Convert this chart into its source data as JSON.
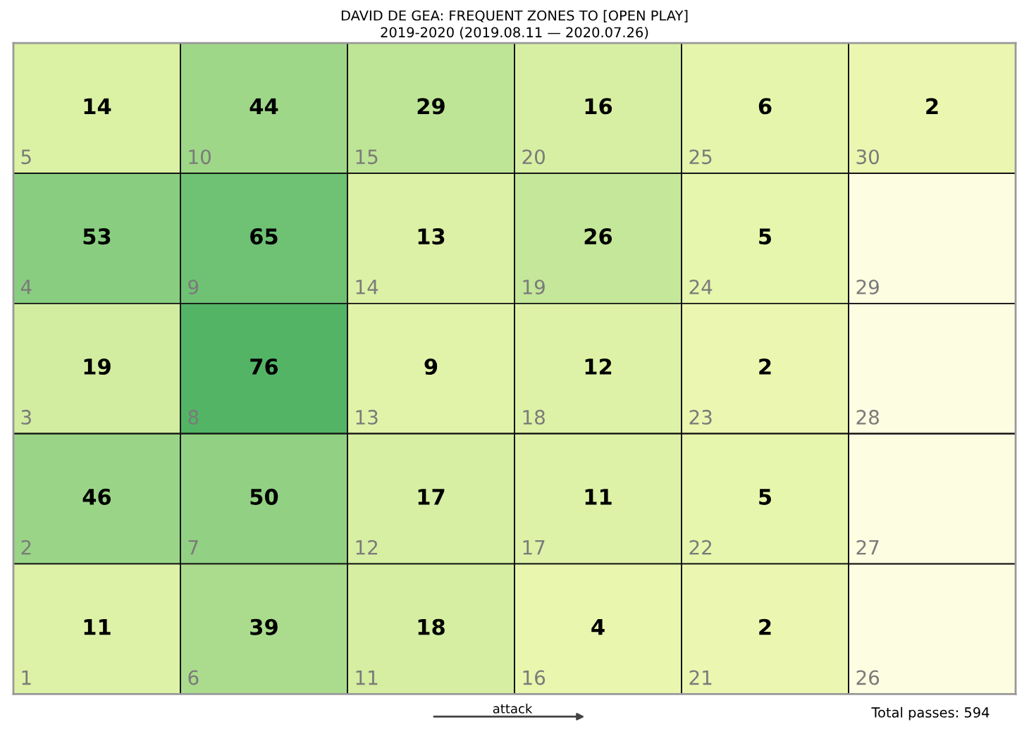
{
  "chart_data": {
    "type": "heatmap",
    "title": "DAVID DE GEA: FREQUENT ZONES TO [OPEN PLAY]",
    "subtitle": "2019-2020 (2019.08.11 — 2020.07.26)",
    "categories": [
      null,
      null,
      null,
      null,
      null,
      null
    ],
    "y_categories": [
      null,
      null,
      null,
      null,
      null
    ],
    "cells": [
      [
        14,
        44,
        29,
        16,
        6,
        2
      ],
      [
        53,
        65,
        13,
        26,
        5,
        null
      ],
      [
        19,
        76,
        9,
        12,
        2,
        null
      ],
      [
        46,
        50,
        17,
        11,
        5,
        null
      ],
      [
        11,
        39,
        18,
        4,
        2,
        null
      ]
    ],
    "cell_labels": [
      [
        "14",
        "44",
        "29",
        "16",
        "6",
        "2"
      ],
      [
        "53",
        "65",
        "13",
        "26",
        "5",
        null
      ],
      [
        "19",
        "76",
        "9",
        "12",
        "2",
        null
      ],
      [
        "46",
        "50",
        "17",
        "11",
        "5",
        null
      ],
      [
        "11",
        "39",
        "18",
        "4",
        "2",
        null
      ]
    ],
    "data_labels": true,
    "annotations": [
      "attack",
      "Total passes: 594",
      "5",
      "10",
      "15",
      "20",
      "25",
      "30",
      "4",
      "9",
      "14",
      "19",
      "24",
      "29",
      "3",
      "8",
      "13",
      "18",
      "23",
      "28",
      "2",
      "7",
      "12",
      "17",
      "22",
      "27",
      "1",
      "6",
      "11",
      "16",
      "21",
      "26"
    ]
  }
}
